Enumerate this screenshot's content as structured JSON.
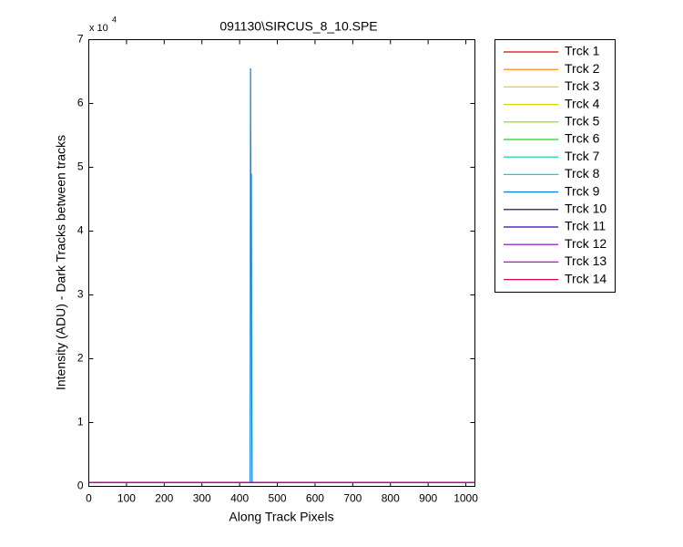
{
  "chart_data": {
    "type": "line",
    "title": "091130\\SIRCUS_8_10.SPE",
    "x_label": "Along Track Pixels",
    "y_label": "Intensity (ADU) - Dark Tracks between tracks",
    "y_multiplier": "x 10",
    "y_multiplier_exp": "4",
    "x": [
      0,
      428,
      429,
      430,
      431,
      432,
      433,
      1024
    ],
    "xlim": [
      0,
      1024
    ],
    "xticks": [
      0,
      100,
      200,
      300,
      400,
      500,
      600,
      700,
      800,
      900,
      1000
    ],
    "ylim": [
      0,
      7
    ],
    "yticks": [
      0,
      1,
      2,
      3,
      4,
      5,
      6,
      7
    ],
    "grid": false,
    "legend": "outside-right",
    "series": [
      {
        "name": "Trck 1",
        "color": "#e00000",
        "values": [
          0.06,
          0.06,
          0.06,
          0.06,
          0.06,
          0.06,
          0.06,
          0.06
        ]
      },
      {
        "name": "Trck 2",
        "color": "#ff7f00",
        "values": [
          0.06,
          0.06,
          0.06,
          0.06,
          0.06,
          0.06,
          0.06,
          0.06
        ]
      },
      {
        "name": "Trck 3",
        "color": "#ffcc00",
        "values": [
          0.06,
          0.06,
          0.06,
          0.06,
          0.06,
          0.06,
          0.06,
          0.06
        ]
      },
      {
        "name": "Trck 4",
        "color": "#d8d800",
        "values": [
          0.06,
          0.06,
          0.06,
          0.06,
          0.06,
          0.06,
          0.06,
          0.06
        ]
      },
      {
        "name": "Trck 5",
        "color": "#80e000",
        "values": [
          0.06,
          0.06,
          0.06,
          0.06,
          0.06,
          0.06,
          0.06,
          0.06
        ]
      },
      {
        "name": "Trck 6",
        "color": "#20d020",
        "values": [
          0.06,
          0.06,
          0.06,
          0.06,
          0.06,
          0.06,
          0.06,
          0.06
        ]
      },
      {
        "name": "Trck 7",
        "color": "#00d090",
        "values": [
          0.06,
          0.06,
          0.06,
          0.06,
          0.06,
          0.06,
          0.06,
          0.06
        ]
      },
      {
        "name": "Trck 8",
        "color": "#00d8d8",
        "values": [
          0.06,
          0.06,
          0.06,
          0.06,
          0.06,
          0.06,
          0.06,
          0.06
        ]
      },
      {
        "name": "Trck 9",
        "color": "#0080e0",
        "values": [
          0.06,
          0.06,
          6.55,
          3.3,
          4.9,
          1.7,
          0.06,
          0.06
        ]
      },
      {
        "name": "Trck 10",
        "color": "#000040",
        "values": [
          0.06,
          0.06,
          0.06,
          0.06,
          0.06,
          0.06,
          0.06,
          0.06
        ]
      },
      {
        "name": "Trck 11",
        "color": "#3000b0",
        "values": [
          0.06,
          0.06,
          0.06,
          0.06,
          0.06,
          0.06,
          0.06,
          0.06
        ]
      },
      {
        "name": "Trck 12",
        "color": "#8000c8",
        "values": [
          0.06,
          0.06,
          0.06,
          0.06,
          0.06,
          0.06,
          0.06,
          0.06
        ]
      },
      {
        "name": "Trck 13",
        "color": "#d000d0",
        "values": [
          0.06,
          0.06,
          0.06,
          0.06,
          0.06,
          0.06,
          0.06,
          0.06
        ]
      },
      {
        "name": "Trck 14",
        "color": "#e00060",
        "values": [
          0.06,
          0.06,
          0.06,
          0.06,
          0.06,
          0.06,
          0.06,
          0.06
        ]
      }
    ]
  }
}
